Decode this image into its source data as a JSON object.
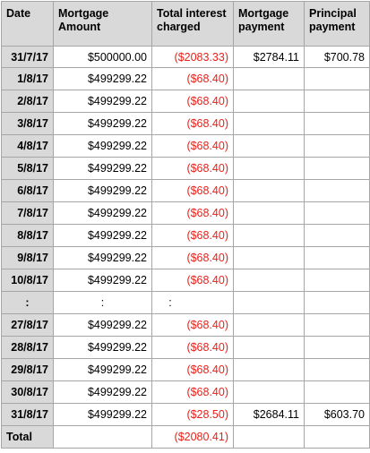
{
  "colors": {
    "header_bg": "#d9d9d9",
    "negative_text": "#e8201a",
    "border": "#a6a6a6"
  },
  "table": {
    "headers": {
      "date": "Date",
      "mortgage_amount": "Mortgage Amount",
      "total_interest": "Total interest charged",
      "mortgage_payment": "Mortgage payment",
      "principal_payment": "Principal payment"
    },
    "rows": [
      {
        "date": "31/7/17",
        "amount": "$500000.00",
        "interest": "($2083.33)",
        "payment": "$2784.11",
        "principal": "$700.78"
      },
      {
        "date": "1/8/17",
        "amount": "$499299.22",
        "interest": "($68.40)",
        "payment": "",
        "principal": ""
      },
      {
        "date": "2/8/17",
        "amount": "$499299.22",
        "interest": "($68.40)",
        "payment": "",
        "principal": ""
      },
      {
        "date": "3/8/17",
        "amount": "$499299.22",
        "interest": "($68.40)",
        "payment": "",
        "principal": ""
      },
      {
        "date": "4/8/17",
        "amount": "$499299.22",
        "interest": "($68.40)",
        "payment": "",
        "principal": ""
      },
      {
        "date": "5/8/17",
        "amount": "$499299.22",
        "interest": "($68.40)",
        "payment": "",
        "principal": ""
      },
      {
        "date": "6/8/17",
        "amount": "$499299.22",
        "interest": "($68.40)",
        "payment": "",
        "principal": ""
      },
      {
        "date": "7/8/17",
        "amount": "$499299.22",
        "interest": "($68.40)",
        "payment": "",
        "principal": ""
      },
      {
        "date": "8/8/17",
        "amount": "$499299.22",
        "interest": "($68.40)",
        "payment": "",
        "principal": ""
      },
      {
        "date": "9/8/17",
        "amount": "$499299.22",
        "interest": "($68.40)",
        "payment": "",
        "principal": ""
      },
      {
        "date": "10/8/17",
        "amount": "$499299.22",
        "interest": "($68.40)",
        "payment": "",
        "principal": ""
      },
      {
        "date": ":",
        "amount": ":",
        "interest": ":",
        "payment": "",
        "principal": "",
        "ellipsis": true
      },
      {
        "date": "27/8/17",
        "amount": "$499299.22",
        "interest": "($68.40)",
        "payment": "",
        "principal": ""
      },
      {
        "date": "28/8/17",
        "amount": "$499299.22",
        "interest": "($68.40)",
        "payment": "",
        "principal": ""
      },
      {
        "date": "29/8/17",
        "amount": "$499299.22",
        "interest": "($68.40)",
        "payment": "",
        "principal": ""
      },
      {
        "date": "30/8/17",
        "amount": "$499299.22",
        "interest": "($68.40)",
        "payment": "",
        "principal": ""
      },
      {
        "date": "31/8/17",
        "amount": "$499299.22",
        "interest": "($28.50)",
        "payment": "$2684.11",
        "principal": "$603.70"
      }
    ],
    "total": {
      "label": "Total",
      "amount": "",
      "interest": "($2080.41)",
      "payment": "",
      "principal": ""
    }
  }
}
